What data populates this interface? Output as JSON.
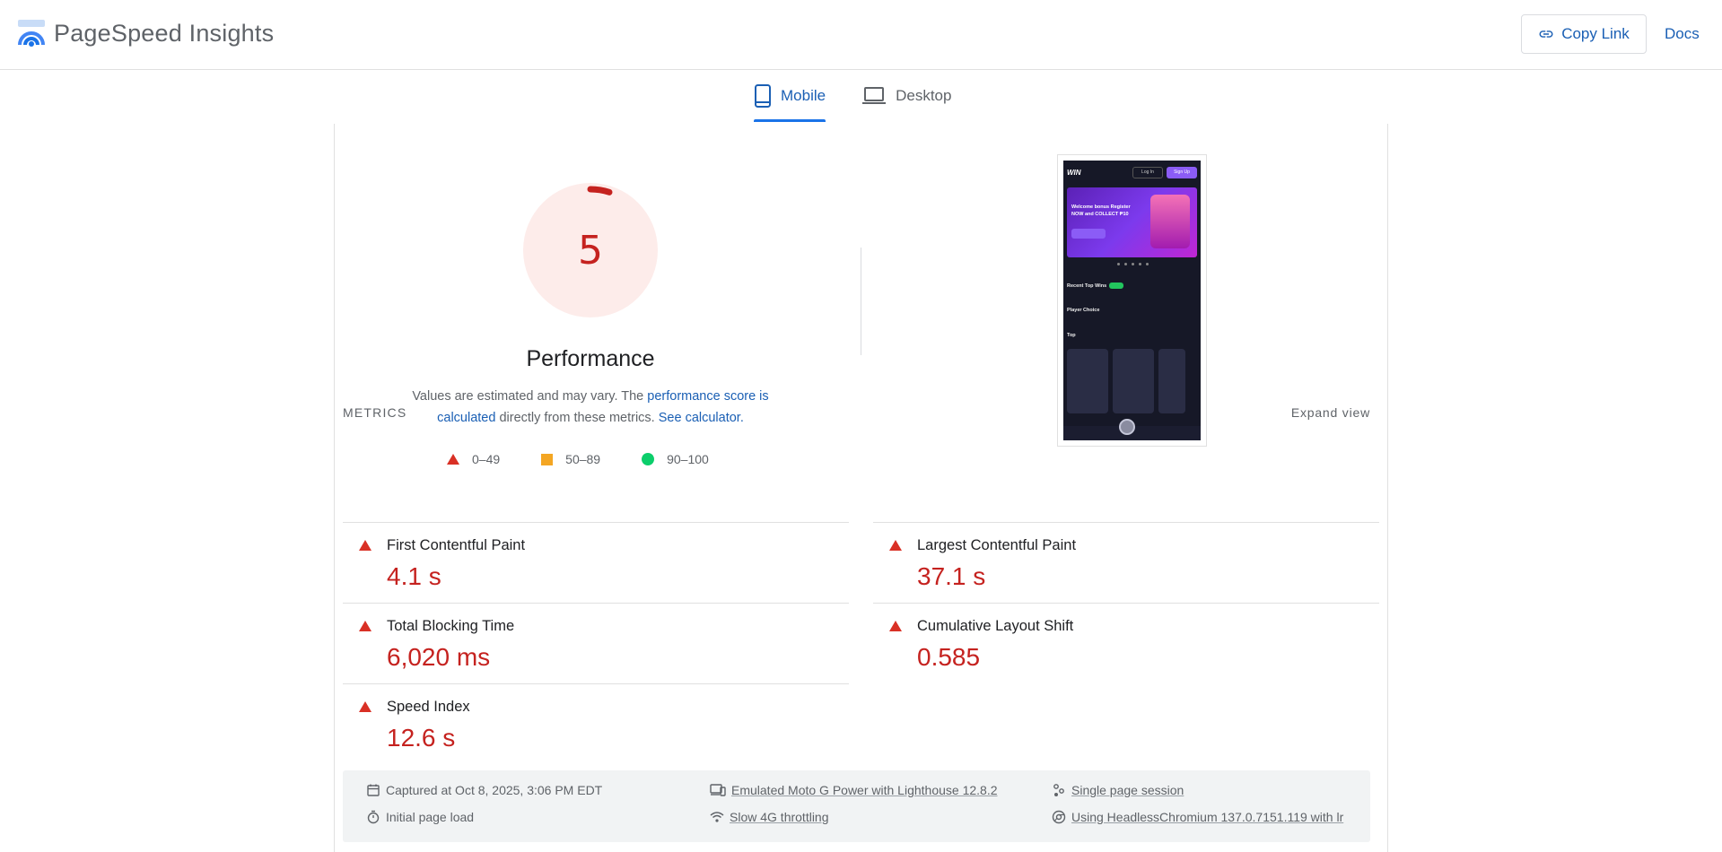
{
  "header": {
    "app_name": "PageSpeed Insights",
    "copy_link_label": "Copy Link",
    "docs_label": "Docs"
  },
  "tabs": [
    {
      "label": "Mobile",
      "active": true
    },
    {
      "label": "Desktop",
      "active": false
    }
  ],
  "performance": {
    "score": "5",
    "score_fraction": 0.05,
    "title": "Performance",
    "note_prefix": "Values are estimated and may vary. The ",
    "note_link1": "performance score is calculated",
    "note_middle": " directly from these metrics. ",
    "note_link2": "See calculator.",
    "legend": [
      {
        "shape": "triangle",
        "label": "0–49",
        "color": "#d93025"
      },
      {
        "shape": "square",
        "label": "50–89",
        "color": "#f4a623"
      },
      {
        "shape": "circle",
        "label": "90–100",
        "color": "#0cce6b"
      }
    ]
  },
  "screenshot": {
    "logo": "WIN",
    "login": "Log In",
    "signup": "Sign Up",
    "banner_text": "Welcome bonus Register NOW and COLLECT ₱10",
    "section1": "Recent Top Wins",
    "section2": "Player Choice",
    "section3": "Top"
  },
  "metrics": {
    "label": "METRICS",
    "expand_label": "Expand view",
    "items": [
      {
        "name": "First Contentful Paint",
        "value": "4.1 s"
      },
      {
        "name": "Largest Contentful Paint",
        "value": "37.1 s"
      },
      {
        "name": "Total Blocking Time",
        "value": "6,020 ms"
      },
      {
        "name": "Cumulative Layout Shift",
        "value": "0.585"
      },
      {
        "name": "Speed Index",
        "value": "12.6 s"
      }
    ]
  },
  "run_info": {
    "captured": "Captured at Oct 8, 2025, 3:06 PM EDT",
    "initial_load": "Initial page load",
    "device": "Emulated Moto G Power with Lighthouse 12.8.2",
    "throttling": "Slow 4G throttling",
    "session": "Single page session",
    "browser": "Using HeadlessChromium 137.0.7151.119 with lr"
  },
  "colors": {
    "fail": "#c5221f",
    "fail_icon": "#d93025",
    "average": "#f4a623",
    "pass": "#0cce6b",
    "link": "#1a5fb4"
  }
}
